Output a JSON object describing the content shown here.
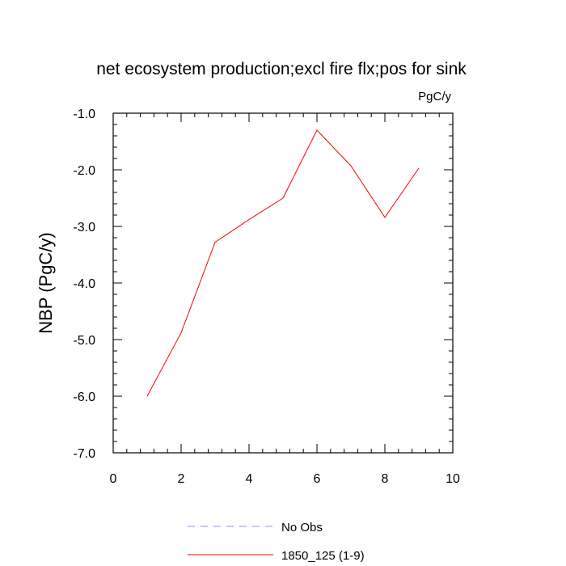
{
  "chart_data": {
    "type": "line",
    "title": "net ecosystem production;excl fire flx;pos for sink",
    "units": "PgC/y",
    "xlabel": "",
    "ylabel": "NBP  (PgC/y)",
    "xlim": [
      0,
      10
    ],
    "ylim": [
      -7.0,
      -1.0
    ],
    "x_ticks": [
      0,
      2,
      4,
      6,
      8,
      10
    ],
    "x_tick_labels": [
      "0",
      "2",
      "4",
      "6",
      "8",
      "10"
    ],
    "y_ticks": [
      -7.0,
      -6.0,
      -5.0,
      -4.0,
      -3.0,
      -2.0,
      -1.0
    ],
    "y_tick_labels": [
      "-7.0",
      "-6.0",
      "-5.0",
      "-4.0",
      "-3.0",
      "-2.0",
      "-1.0"
    ],
    "grid": false,
    "legend_position": "bottom",
    "series": [
      {
        "name": "1850_125 (1-9)",
        "color": "#ff0000",
        "style": "solid",
        "x": [
          1,
          2,
          3,
          4,
          5,
          6,
          7,
          8,
          9
        ],
        "y": [
          -6.0,
          -4.88,
          -3.28,
          -2.88,
          -2.5,
          -1.3,
          -1.93,
          -2.84,
          -1.97
        ]
      }
    ],
    "legend": [
      {
        "label": "No Obs",
        "color": "#8c8cff",
        "style": "dashed"
      },
      {
        "label": "1850_125 (1-9)",
        "color": "#ff0000",
        "style": "solid"
      }
    ]
  }
}
